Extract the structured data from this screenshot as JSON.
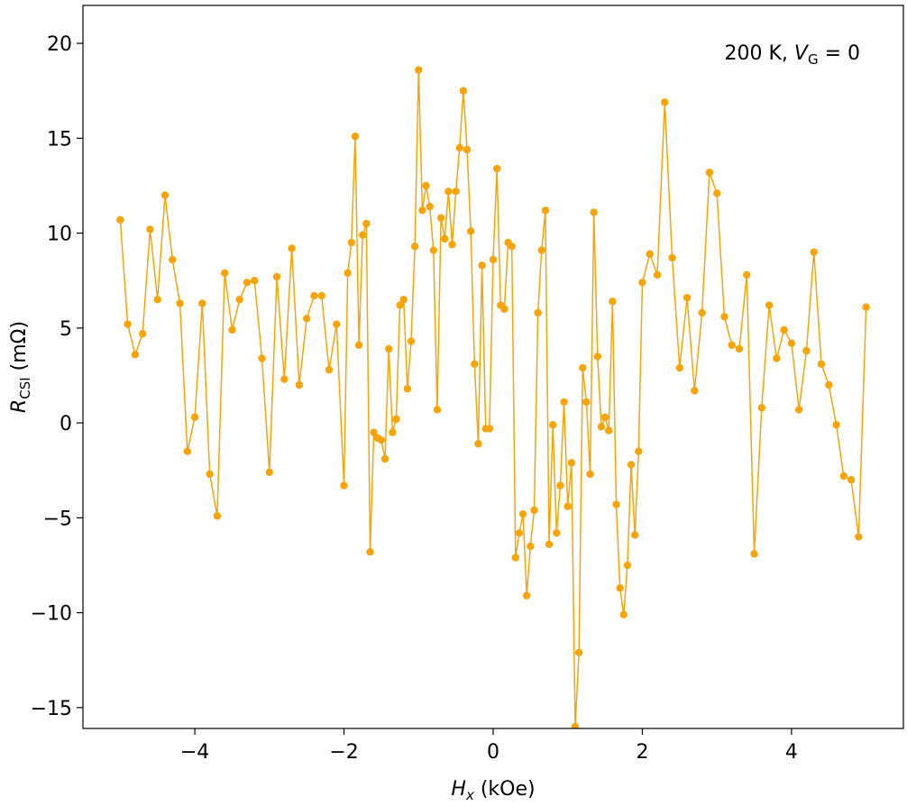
{
  "chart_data": {
    "type": "line",
    "title": "",
    "xlabel_main": "H",
    "xlabel_sub": "x",
    "xlabel_unit": " (kOe)",
    "ylabel_main": "R",
    "ylabel_sub": "CSI",
    "ylabel_unit": " (mΩ)",
    "annotation": {
      "prefix": "200 K, ",
      "var": "V",
      "sub": "G",
      "suffix": " = 0"
    },
    "xlim": [
      -5.5,
      5.5
    ],
    "ylim": [
      -16.1,
      22
    ],
    "xticks": [
      -4,
      -2,
      0,
      2,
      4
    ],
    "xtick_labels": [
      "−4",
      "−2",
      "0",
      "2",
      "4"
    ],
    "yticks": [
      -15,
      -10,
      -5,
      0,
      5,
      10,
      15,
      20
    ],
    "ytick_labels": [
      "−15",
      "−10",
      "−5",
      "0",
      "5",
      "10",
      "15",
      "20"
    ],
    "grid": false,
    "series_color": "#f5a50a",
    "series": [
      {
        "x": [
          -5.0,
          -4.9,
          -4.8,
          -4.7,
          -4.6,
          -4.5,
          -4.4,
          -4.3,
          -4.2,
          -4.1,
          -4.0,
          -3.9,
          -3.8,
          -3.7,
          -3.6,
          -3.5,
          -3.4,
          -3.3,
          -3.2,
          -3.1,
          -3.0,
          -2.9,
          -2.8,
          -2.7,
          -2.6,
          -2.5,
          -2.4,
          -2.3,
          -2.2,
          -2.1,
          -2.0,
          -1.95,
          -1.9,
          -1.85,
          -1.8,
          -1.75,
          -1.7,
          -1.65,
          -1.6,
          -1.55,
          -1.5,
          -1.45,
          -1.4,
          -1.35,
          -1.3,
          -1.25,
          -1.2,
          -1.15,
          -1.1,
          -1.05,
          -1.0,
          -0.95,
          -0.9,
          -0.85,
          -0.8,
          -0.75,
          -0.7,
          -0.65,
          -0.6,
          -0.55,
          -0.5,
          -0.45,
          -0.4,
          -0.35,
          -0.3,
          -0.25,
          -0.2,
          -0.15,
          -0.1,
          -0.05,
          0.0,
          0.05,
          0.1,
          0.15,
          0.2,
          0.25,
          0.3,
          0.35,
          0.4,
          0.45,
          0.5,
          0.55,
          0.6,
          0.65,
          0.7,
          0.75,
          0.8,
          0.85,
          0.9,
          0.95,
          1.0,
          1.05,
          1.1,
          1.15,
          1.2,
          1.25,
          1.3,
          1.35,
          1.4,
          1.45,
          1.5,
          1.55,
          1.6,
          1.65,
          1.7,
          1.75,
          1.8,
          1.85,
          1.9,
          1.95,
          2.0,
          2.1,
          2.2,
          2.3,
          2.4,
          2.5,
          2.6,
          2.7,
          2.8,
          2.9,
          3.0,
          3.1,
          3.2,
          3.3,
          3.4,
          3.5,
          3.6,
          3.7,
          3.8,
          3.9,
          4.0,
          4.1,
          4.2,
          4.3,
          4.4,
          4.5,
          4.6,
          4.7,
          4.8,
          4.9,
          5.0
        ],
        "y": [
          10.7,
          5.2,
          3.6,
          4.7,
          10.2,
          6.5,
          12.0,
          8.6,
          6.3,
          -1.5,
          0.3,
          6.3,
          -2.7,
          -4.9,
          7.9,
          4.9,
          6.5,
          7.4,
          7.5,
          3.4,
          -2.6,
          7.7,
          2.3,
          9.2,
          2.0,
          5.5,
          6.7,
          6.7,
          2.8,
          5.2,
          -3.3,
          7.9,
          9.5,
          15.1,
          4.1,
          9.9,
          10.5,
          -6.8,
          -0.5,
          -0.8,
          -0.9,
          -1.9,
          3.9,
          -0.5,
          0.2,
          6.2,
          6.5,
          1.8,
          4.3,
          9.3,
          18.6,
          11.2,
          12.5,
          11.4,
          9.1,
          0.7,
          10.8,
          9.7,
          12.2,
          9.4,
          12.2,
          14.5,
          17.5,
          14.4,
          10.1,
          3.1,
          -1.1,
          8.3,
          -0.3,
          -0.3,
          8.6,
          13.4,
          6.2,
          6.0,
          9.5,
          9.3,
          -7.1,
          -5.8,
          -4.8,
          -9.1,
          -6.5,
          -4.6,
          5.8,
          9.1,
          11.2,
          -6.4,
          -0.1,
          -5.8,
          -3.3,
          1.1,
          -4.4,
          -2.1,
          -16.0,
          -12.1,
          2.9,
          1.1,
          -2.7,
          11.1,
          3.5,
          -0.2,
          0.3,
          -0.4,
          6.4,
          -4.3,
          -8.7,
          -10.1,
          -7.5,
          -2.2,
          -5.9,
          -1.5,
          7.4,
          8.9,
          7.8,
          16.9,
          8.7,
          2.9,
          6.6,
          1.7,
          5.8,
          13.2,
          12.1,
          5.6,
          4.1,
          3.9,
          7.8,
          -6.9,
          0.8,
          6.2,
          3.4,
          4.9,
          4.2,
          0.7,
          3.8,
          9.0,
          3.1,
          2.0,
          -0.1,
          -2.8,
          -3.0,
          -6.0,
          6.1
        ]
      }
    ]
  }
}
